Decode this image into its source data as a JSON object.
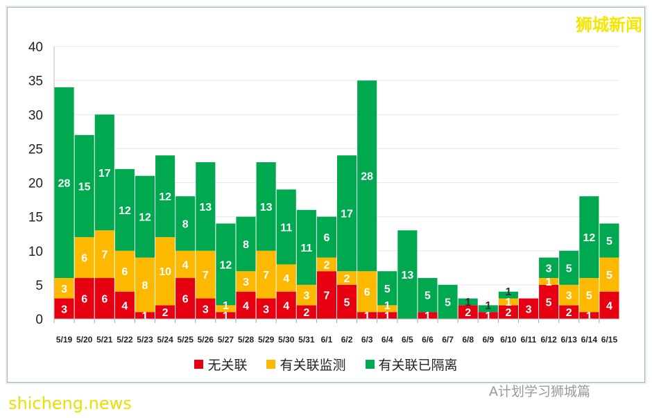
{
  "watermarks": {
    "top_right": "狮城新闻",
    "bottom_left": "shicheng.news",
    "bottom_right": "A计划学习狮城篇"
  },
  "chart_data": {
    "type": "bar",
    "stacked": true,
    "categories": [
      "5/19",
      "5/20",
      "5/21",
      "5/22",
      "5/23",
      "5/24",
      "5/25",
      "5/26",
      "5/27",
      "5/28",
      "5/29",
      "5/30",
      "5/31",
      "6/1",
      "6/2",
      "6/3",
      "6/4",
      "6/5",
      "6/6",
      "6/7",
      "6/8",
      "6/9",
      "6/10",
      "6/11",
      "6/12",
      "6/13",
      "6/14",
      "6/15"
    ],
    "series": [
      {
        "name": "无关联",
        "color": "#e60012",
        "values": [
          3,
          6,
          6,
          4,
          1,
          2,
          6,
          3,
          1,
          4,
          3,
          4,
          2,
          7,
          5,
          1,
          1,
          0,
          1,
          0,
          2,
          1,
          2,
          3,
          5,
          2,
          1,
          4
        ]
      },
      {
        "name": "有关联监测",
        "color": "#fdb900",
        "values": [
          3,
          6,
          7,
          6,
          8,
          10,
          4,
          7,
          1,
          3,
          7,
          4,
          3,
          2,
          2,
          6,
          1,
          0,
          0,
          0,
          0,
          0,
          1,
          0,
          1,
          3,
          5,
          5
        ]
      },
      {
        "name": "有关联已隔离",
        "color": "#00a94f",
        "values": [
          28,
          15,
          17,
          12,
          12,
          12,
          8,
          13,
          12,
          8,
          13,
          11,
          11,
          6,
          17,
          28,
          5,
          13,
          5,
          5,
          1,
          1,
          1,
          0,
          3,
          5,
          12,
          5
        ]
      }
    ],
    "yticks": [
      0,
      5,
      10,
      15,
      20,
      25,
      30,
      35,
      40
    ],
    "ylim": [
      0,
      40
    ],
    "grid": true,
    "legend": "bottom"
  }
}
